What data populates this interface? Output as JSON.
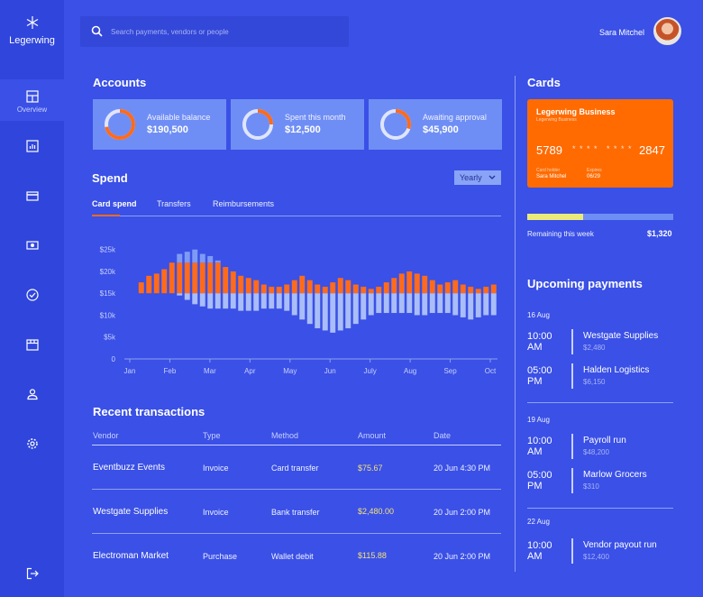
{
  "app": {
    "name": "Legerwing"
  },
  "sidebar": {
    "items": [
      {
        "label": "Overview",
        "icon": "layout-icon"
      },
      {
        "label": "",
        "icon": "chart-icon"
      },
      {
        "label": "",
        "icon": "card-icon"
      },
      {
        "label": "",
        "icon": "cash-icon"
      },
      {
        "label": "",
        "icon": "check-circle-icon"
      },
      {
        "label": "",
        "icon": "store-icon"
      },
      {
        "label": "",
        "icon": "user-icon"
      },
      {
        "label": "",
        "icon": "gear-icon"
      },
      {
        "label": "",
        "icon": "logout-icon"
      }
    ]
  },
  "search": {
    "placeholder": "Search payments, vendors or people"
  },
  "user": {
    "name": "Sara Mitchel"
  },
  "accounts": {
    "title": "Accounts",
    "items": [
      {
        "label": "Available balance",
        "value": "$190,500",
        "ring": 0.72
      },
      {
        "label": "Spent this month",
        "value": "$12,500",
        "ring": 0.25
      },
      {
        "label": "Awaiting approval",
        "value": "$45,900",
        "ring": 0.3
      }
    ]
  },
  "spend": {
    "title": "Spend",
    "period": "Yearly",
    "tabs": [
      "Card spend",
      "Transfers",
      "Reimbursements"
    ]
  },
  "chart_data": {
    "type": "bar",
    "x_ticks": [
      "Jan",
      "Feb",
      "Mar",
      "Apr",
      "May",
      "Jun",
      "July",
      "Aug",
      "Sep",
      "Oct"
    ],
    "y_ticks": [
      "$25k",
      "$20k",
      "$15k",
      "$10k",
      "$5k",
      "0"
    ],
    "ylim": [
      0,
      27000
    ],
    "grid": false,
    "colors": {
      "up": "#ff6b1a",
      "down": "#a9bdf8",
      "faint": "#7f9af5"
    },
    "series": [
      {
        "name": "",
        "values": [
          15000,
          17500,
          19000,
          19500,
          20500,
          22000,
          24000,
          24500,
          25000,
          24000,
          23500,
          22500,
          21000,
          20000,
          19000,
          18500,
          18000,
          17000,
          16500,
          16500,
          17000,
          18000,
          19000,
          18000,
          17000,
          16500,
          17500,
          18500,
          18000,
          17000,
          16500,
          16000,
          16500,
          17500,
          18500,
          19500,
          20000,
          19500,
          19000,
          18000,
          17000,
          17500,
          18000,
          17000,
          16500,
          16000,
          16500,
          17000
        ]
      },
      {
        "name": "",
        "values": [
          15000,
          15000,
          15000,
          15000,
          15000,
          15000,
          14500,
          13500,
          12500,
          12000,
          11500,
          11500,
          11500,
          11500,
          11000,
          11000,
          11000,
          11500,
          11500,
          11500,
          11000,
          10000,
          9000,
          8000,
          7000,
          6500,
          6000,
          6500,
          7000,
          8000,
          9000,
          10000,
          10500,
          10500,
          10500,
          10500,
          10500,
          10000,
          10000,
          10500,
          10500,
          10500,
          10000,
          9500,
          9000,
          9500,
          10000,
          10000
        ]
      }
    ]
  },
  "transactions": {
    "title": "Recent transactions",
    "headers": [
      "Vendor",
      "Type",
      "Method",
      "Amount",
      "Date"
    ],
    "rows": [
      [
        "Eventbuzz Events",
        "Invoice",
        "Card transfer",
        "$75.67",
        "20 Jun 4:30 PM"
      ],
      [
        "Westgate Supplies",
        "Invoice",
        "Bank transfer",
        "$2,480.00",
        "20 Jun 2:00 PM"
      ],
      [
        "Electroman Market",
        "Purchase",
        "Wallet debit",
        "$115.88",
        "20 Jun 2:00 PM"
      ]
    ]
  },
  "cards": {
    "title": "Cards",
    "card": {
      "name": "Legerwing Business",
      "sub": "Legerwing Business",
      "first": "5789",
      "mask1": "* * * *",
      "mask2": "* * * *",
      "last": "2847",
      "holder_label": "Card holder",
      "holder": "Sara Mitchel",
      "expiry_label": "Expires",
      "expiry": "06/29",
      "color": "#ff6b00"
    },
    "remaining_label": "Remaining this week",
    "remaining_value": "$1,320",
    "remaining_fraction": 0.38
  },
  "upcoming": {
    "title": "Upcoming payments",
    "groups": [
      {
        "date": "16 Aug",
        "items": [
          {
            "time": "10:00 AM",
            "name": "Westgate Supplies",
            "amount": "$2,480"
          },
          {
            "time": "05:00 PM",
            "name": "Halden Logistics",
            "amount": "$6,150"
          }
        ]
      },
      {
        "date": "19 Aug",
        "items": [
          {
            "time": "10:00 AM",
            "name": "Payroll run",
            "amount": "$48,200"
          },
          {
            "time": "05:00 PM",
            "name": "Marlow Grocers",
            "amount": "$310"
          }
        ]
      },
      {
        "date": "22 Aug",
        "items": [
          {
            "time": "10:00 AM",
            "name": "Vendor payout run",
            "amount": "$12,400"
          }
        ]
      }
    ]
  }
}
